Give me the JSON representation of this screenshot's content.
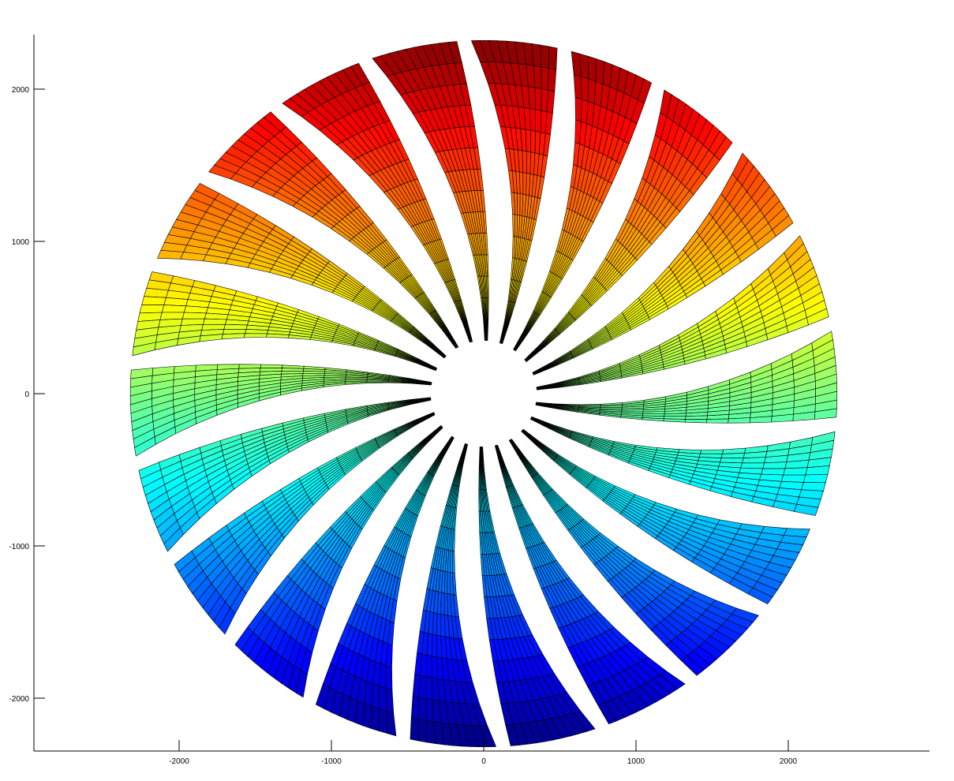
{
  "chart_data": {
    "type": "surface",
    "title": "",
    "xlabel": "",
    "ylabel": "",
    "xlim": [
      -2950,
      2930
    ],
    "ylim": [
      -2350,
      2350
    ],
    "xticks": [
      -2000,
      -1000,
      0,
      1000,
      2000
    ],
    "xtick_labels": [
      "-2000",
      "-1000",
      "0",
      "1000",
      "2000"
    ],
    "yticks": [
      2000,
      1000,
      0,
      -1000,
      -2000
    ],
    "ytick_labels": [
      "2000",
      "1000",
      "0",
      "-1000",
      "-2000"
    ],
    "grid": false,
    "legend": "none",
    "colormap": "jet",
    "color_variable": "y",
    "edge_color": "#000000",
    "blades": {
      "count": 22,
      "hub_radius": 350,
      "tip_radius": 2320,
      "hub_half_width_deg": 1.5,
      "tip_half_width_deg": 7.0,
      "sweep_deg": 14,
      "first_tip_angle_deg": 85
    },
    "mesh": {
      "radial_cells": 14,
      "tangential_cells": 10
    }
  }
}
